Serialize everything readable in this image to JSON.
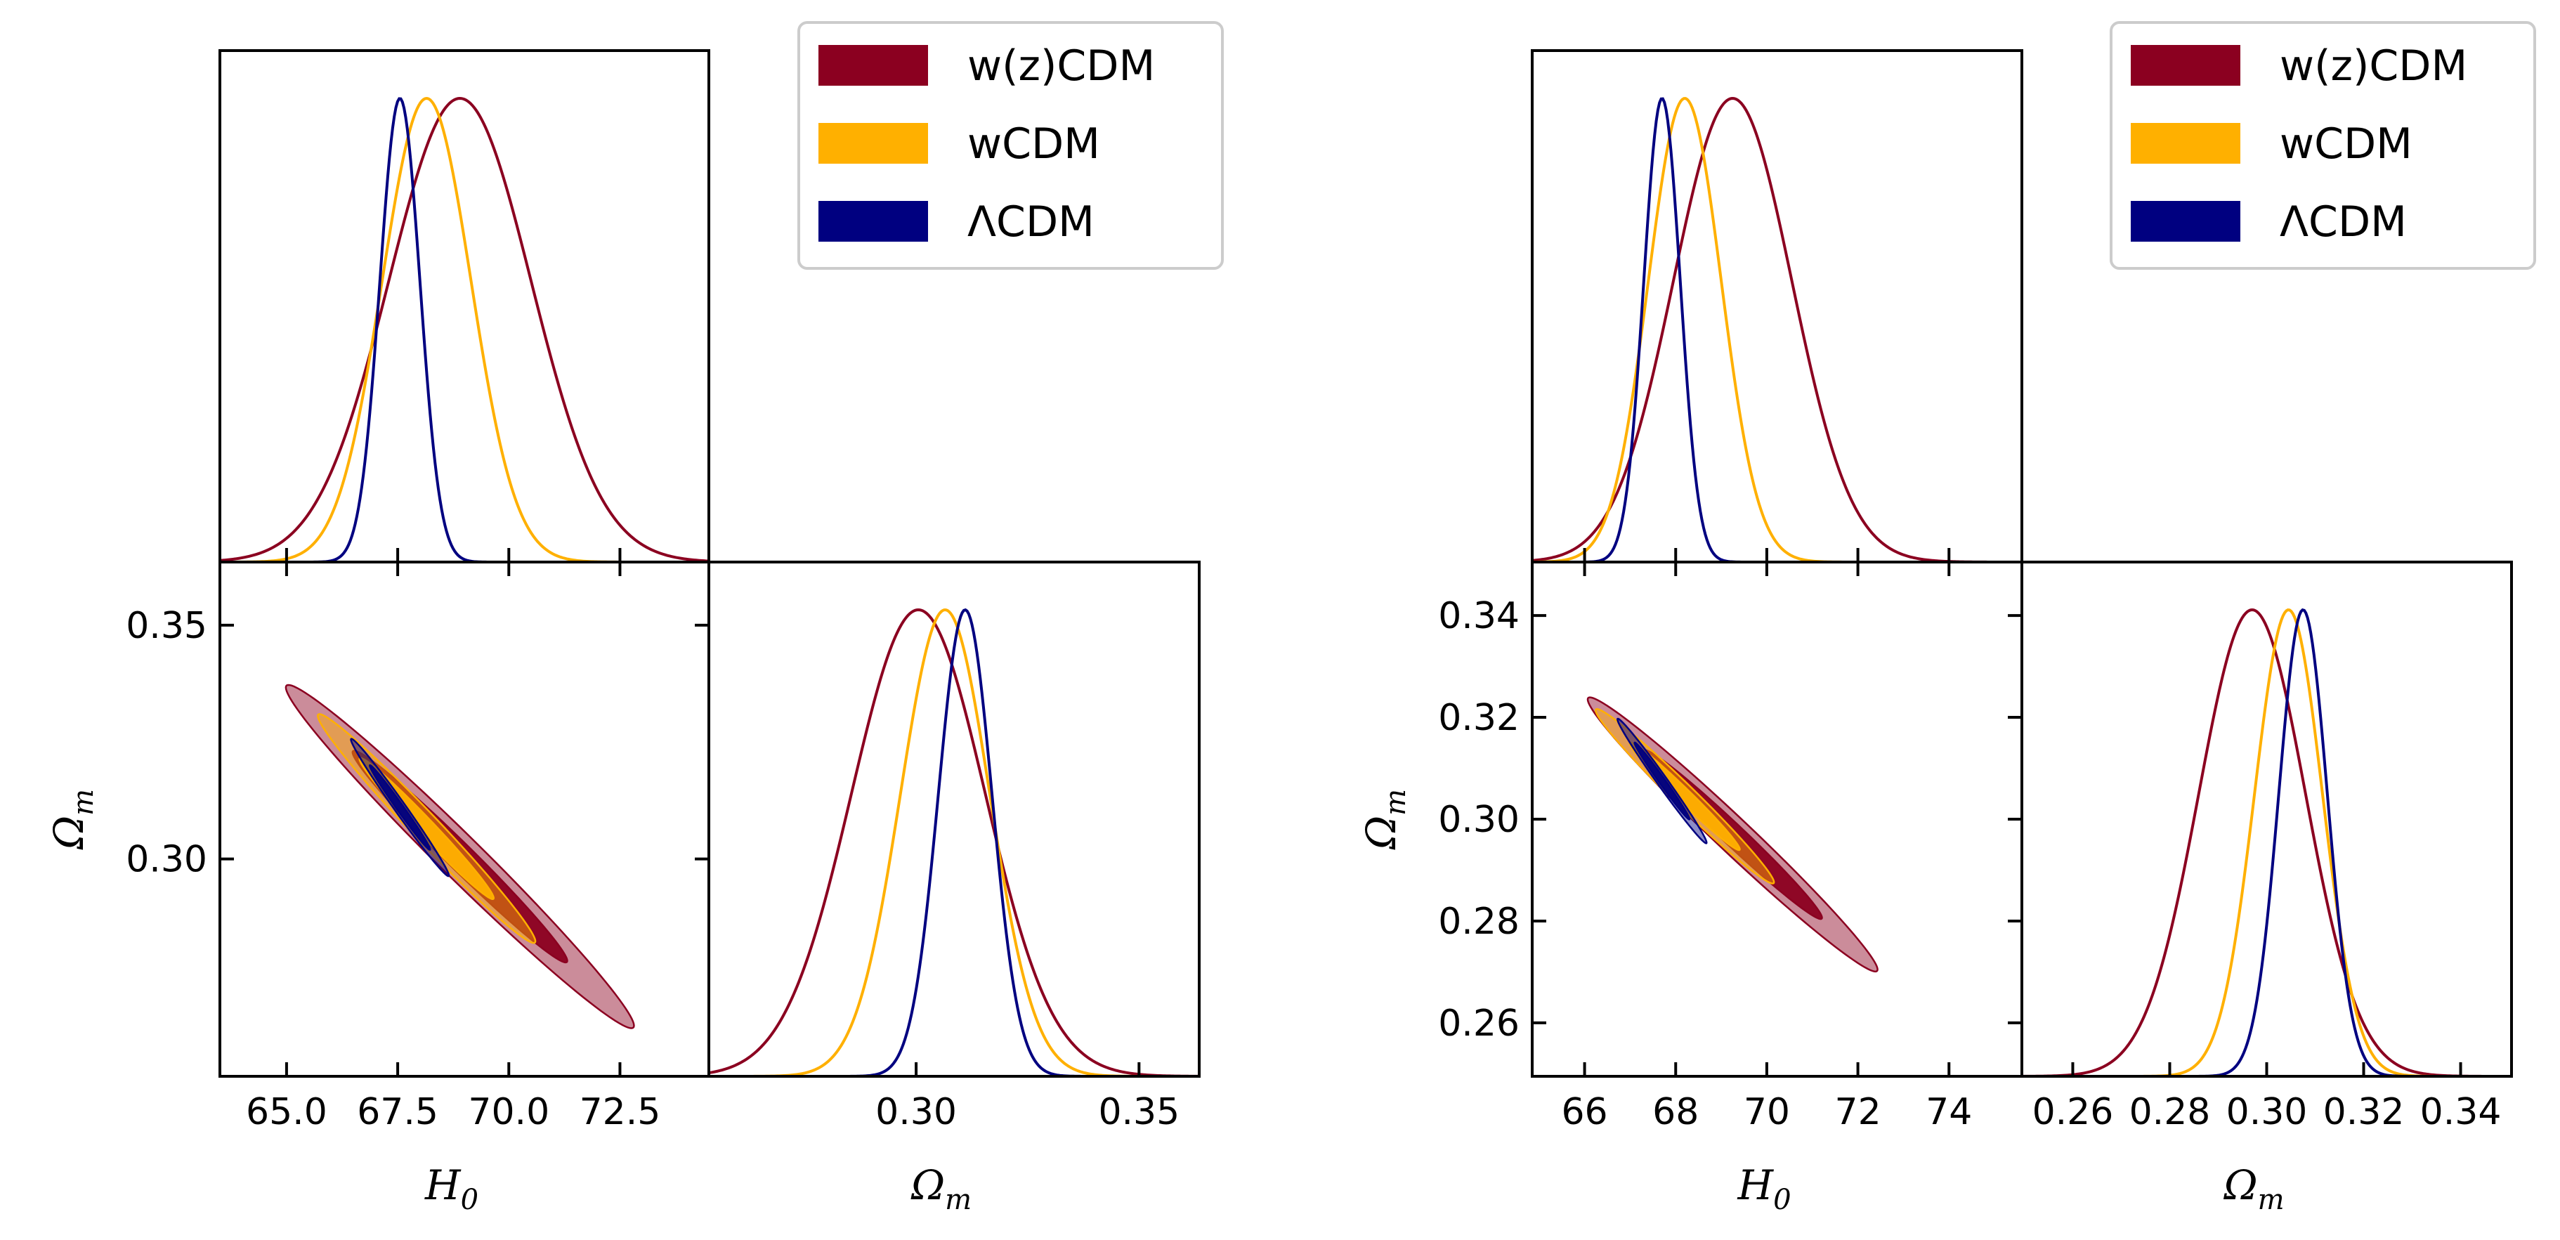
{
  "colors": {
    "wzcdm": "#8b0020",
    "wcdm": "#ffb000",
    "lcdm": "#000080"
  },
  "chart_data": [
    {
      "type": "triangle",
      "name": "left-corner-plot",
      "parameters": [
        "H0",
        "Omega_m"
      ],
      "xlabel_h0": "H",
      "xlabel_h0_sub": "0",
      "xlabel_om": "Ω",
      "xlabel_om_sub": "m",
      "ylabel_om": "Ω",
      "ylabel_om_sub": "m",
      "h0_range": [
        63.5,
        74.5
      ],
      "om_range": [
        0.2535,
        0.3635
      ],
      "h0_ticks": [
        65.0,
        67.5,
        70.0,
        72.5
      ],
      "h0_tick_labels": [
        "65.0",
        "67.5",
        "70.0",
        "72.5"
      ],
      "om_ticks": [
        0.3,
        0.35
      ],
      "om_tick_labels": [
        "0.30",
        "0.35"
      ],
      "legend": [
        "w(z)CDM",
        "wCDM",
        "ΛCDM"
      ],
      "series": [
        {
          "name": "w(z)CDM",
          "color_key": "wzcdm",
          "h0_mean": 68.9,
          "h0_sigma": 1.6,
          "om_mean": 0.3005,
          "om_sigma": 0.015,
          "rho": -0.985,
          "filled": true
        },
        {
          "name": "wCDM",
          "color_key": "wcdm",
          "h0_mean": 68.15,
          "h0_sigma": 1.0,
          "om_mean": 0.3065,
          "om_sigma": 0.01,
          "rho": -0.985,
          "filled": true
        },
        {
          "name": "ΛCDM",
          "color_key": "lcdm",
          "h0_mean": 67.55,
          "h0_sigma": 0.45,
          "om_mean": 0.311,
          "om_sigma": 0.006,
          "rho": -0.99,
          "filled": true
        }
      ]
    },
    {
      "type": "triangle",
      "name": "right-corner-plot",
      "parameters": [
        "H0",
        "Omega_m"
      ],
      "xlabel_h0": "H",
      "xlabel_h0_sub": "0",
      "xlabel_om": "Ω",
      "xlabel_om_sub": "m",
      "ylabel_om": "Ω",
      "ylabel_om_sub": "m",
      "h0_range": [
        64.85,
        75.6
      ],
      "om_range": [
        0.2495,
        0.3505
      ],
      "h0_ticks": [
        66,
        68,
        70,
        72,
        74
      ],
      "h0_tick_labels": [
        "66",
        "68",
        "70",
        "72",
        "74"
      ],
      "om_ticks": [
        0.26,
        0.28,
        0.3,
        0.32,
        0.34
      ],
      "om_tick_labels": [
        "0.26",
        "0.28",
        "0.30",
        "0.32",
        "0.34"
      ],
      "om_ticks_x": [
        0.26,
        0.28,
        0.3,
        0.32,
        0.34
      ],
      "om_tick_labels_x": [
        "0.26",
        "0.28",
        "0.30",
        "0.32",
        "0.34"
      ],
      "legend": [
        "w(z)CDM",
        "wCDM",
        "ΛCDM"
      ],
      "series": [
        {
          "name": "w(z)CDM",
          "color_key": "wzcdm",
          "h0_mean": 69.25,
          "h0_sigma": 1.3,
          "om_mean": 0.297,
          "om_sigma": 0.011,
          "rho": -0.985,
          "filled": true
        },
        {
          "name": "wCDM",
          "color_key": "wcdm",
          "h0_mean": 68.2,
          "h0_sigma": 0.8,
          "om_mean": 0.3045,
          "om_sigma": 0.007,
          "rho": -0.985,
          "filled": true
        },
        {
          "name": "ΛCDM",
          "color_key": "lcdm",
          "h0_mean": 67.7,
          "h0_sigma": 0.4,
          "om_mean": 0.3075,
          "om_sigma": 0.005,
          "rho": -0.99,
          "filled": true
        }
      ]
    }
  ]
}
